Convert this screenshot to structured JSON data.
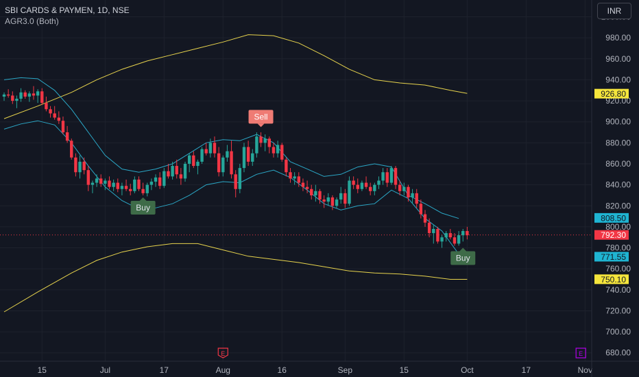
{
  "header": {
    "symbol_line": "SBI CARDS & PAYMEN, 1D, NSE",
    "indicator_line": "AGR3.0 (Both)"
  },
  "currency_button": "INR",
  "colors": {
    "background": "#131722",
    "up": "#26a69a",
    "down": "#f23645",
    "inner_band": "#2ba8c7",
    "outer_band": "#e8d44d",
    "buy_label": "#3e6b48",
    "sell_label": "#ef7b74",
    "earnings_red": "#f23645",
    "earnings_purple": "#b100e8"
  },
  "chart_data": {
    "type": "candlestick",
    "title": "SBI CARDS & PAYMEN, 1D, NSE",
    "ylim": [
      672,
      1016
    ],
    "y_ticks": [
      "1000.00",
      "980.00",
      "960.00",
      "940.00",
      "920.00",
      "900.00",
      "880.00",
      "860.00",
      "840.00",
      "820.00",
      "800.00",
      "780.00",
      "760.00",
      "740.00",
      "720.00",
      "700.00",
      "680.00"
    ],
    "x_ticks": [
      "15",
      "Jul",
      "17",
      "Aug",
      "16",
      "Sep",
      "15",
      "Oct",
      "17",
      "Nov"
    ],
    "grid": true,
    "price_labels": [
      {
        "value": 926.8,
        "text": "926.80",
        "series": "outer-upper"
      },
      {
        "value": 808.5,
        "text": "808.50",
        "series": "inner-upper"
      },
      {
        "value": 792.3,
        "text": "792.30",
        "series": "last-price"
      },
      {
        "value": 771.55,
        "text": "771.55",
        "series": "inner-lower"
      },
      {
        "value": 750.1,
        "text": "750.10",
        "series": "outer-lower"
      }
    ],
    "last_price": 792.3,
    "signals": [
      {
        "label": "Buy",
        "bar": 33,
        "value": 830
      },
      {
        "label": "Sell",
        "bar": 61,
        "value": 893
      },
      {
        "label": "Buy",
        "bar": 109,
        "value": 782
      }
    ],
    "earnings_markers": [
      {
        "label": "E",
        "bar": 52,
        "color": "red"
      },
      {
        "label": "E",
        "bar": 137,
        "color": "purple"
      }
    ],
    "candles": [
      [
        924,
        928,
        920,
        926
      ],
      [
        926,
        931,
        923,
        925
      ],
      [
        925,
        929,
        917,
        920
      ],
      [
        920,
        925,
        913,
        922
      ],
      [
        922,
        932,
        919,
        928
      ],
      [
        928,
        930,
        922,
        924
      ],
      [
        924,
        929,
        919,
        927
      ],
      [
        927,
        934,
        921,
        925
      ],
      [
        925,
        931,
        918,
        929
      ],
      [
        929,
        932,
        916,
        918
      ],
      [
        918,
        924,
        910,
        912
      ],
      [
        912,
        915,
        904,
        908
      ],
      [
        908,
        915,
        902,
        904
      ],
      [
        904,
        910,
        898,
        901
      ],
      [
        901,
        905,
        888,
        890
      ],
      [
        890,
        896,
        880,
        882
      ],
      [
        882,
        884,
        864,
        866
      ],
      [
        866,
        870,
        848,
        852
      ],
      [
        852,
        868,
        846,
        862
      ],
      [
        862,
        866,
        850,
        854
      ],
      [
        854,
        858,
        834,
        840
      ],
      [
        840,
        844,
        832,
        842
      ],
      [
        842,
        850,
        838,
        846
      ],
      [
        846,
        850,
        838,
        841
      ],
      [
        841,
        846,
        835,
        844
      ],
      [
        844,
        848,
        836,
        838
      ],
      [
        838,
        845,
        834,
        842
      ],
      [
        842,
        846,
        833,
        836
      ],
      [
        836,
        842,
        830,
        839
      ],
      [
        839,
        845,
        834,
        836
      ],
      [
        836,
        841,
        830,
        834
      ],
      [
        834,
        848,
        832,
        845
      ],
      [
        845,
        848,
        834,
        836
      ],
      [
        836,
        842,
        830,
        832
      ],
      [
        832,
        842,
        829,
        840
      ],
      [
        840,
        846,
        835,
        843
      ],
      [
        843,
        850,
        838,
        847
      ],
      [
        847,
        852,
        836,
        839
      ],
      [
        839,
        856,
        837,
        853
      ],
      [
        853,
        860,
        846,
        848
      ],
      [
        848,
        862,
        845,
        858
      ],
      [
        858,
        864,
        846,
        850
      ],
      [
        850,
        856,
        840,
        846
      ],
      [
        846,
        862,
        843,
        860
      ],
      [
        860,
        870,
        852,
        868
      ],
      [
        868,
        872,
        856,
        858
      ],
      [
        858,
        864,
        850,
        862
      ],
      [
        862,
        876,
        860,
        874
      ],
      [
        874,
        880,
        868,
        870
      ],
      [
        870,
        884,
        866,
        880
      ],
      [
        880,
        886,
        866,
        870
      ],
      [
        870,
        876,
        848,
        852
      ],
      [
        852,
        868,
        848,
        866
      ],
      [
        866,
        878,
        862,
        872
      ],
      [
        872,
        882,
        846,
        850
      ],
      [
        850,
        854,
        828,
        836
      ],
      [
        836,
        860,
        832,
        856
      ],
      [
        856,
        880,
        852,
        876
      ],
      [
        876,
        882,
        858,
        862
      ],
      [
        862,
        874,
        858,
        870
      ],
      [
        870,
        890,
        866,
        886
      ],
      [
        886,
        890,
        876,
        880
      ],
      [
        880,
        888,
        872,
        884
      ],
      [
        884,
        886,
        870,
        876
      ],
      [
        876,
        880,
        866,
        870
      ],
      [
        870,
        882,
        866,
        878
      ],
      [
        878,
        880,
        862,
        864
      ],
      [
        864,
        866,
        848,
        852
      ],
      [
        852,
        856,
        842,
        846
      ],
      [
        846,
        852,
        840,
        848
      ],
      [
        848,
        852,
        838,
        842
      ],
      [
        842,
        846,
        834,
        838
      ],
      [
        838,
        844,
        832,
        836
      ],
      [
        836,
        840,
        826,
        830
      ],
      [
        830,
        840,
        824,
        834
      ],
      [
        834,
        836,
        822,
        826
      ],
      [
        826,
        830,
        818,
        824
      ],
      [
        824,
        832,
        820,
        828
      ],
      [
        828,
        830,
        816,
        820
      ],
      [
        820,
        828,
        818,
        826
      ],
      [
        826,
        838,
        822,
        832
      ],
      [
        832,
        836,
        818,
        822
      ],
      [
        822,
        848,
        820,
        844
      ],
      [
        844,
        848,
        836,
        840
      ],
      [
        840,
        846,
        832,
        836
      ],
      [
        836,
        844,
        834,
        842
      ],
      [
        842,
        848,
        836,
        838
      ],
      [
        838,
        842,
        830,
        834
      ],
      [
        834,
        842,
        830,
        840
      ],
      [
        840,
        848,
        836,
        844
      ],
      [
        844,
        856,
        840,
        852
      ],
      [
        852,
        856,
        838,
        842
      ],
      [
        842,
        858,
        840,
        856
      ],
      [
        856,
        858,
        836,
        840
      ],
      [
        840,
        844,
        830,
        834
      ],
      [
        834,
        842,
        830,
        838
      ],
      [
        838,
        840,
        824,
        828
      ],
      [
        828,
        836,
        822,
        832
      ],
      [
        832,
        836,
        818,
        822
      ],
      [
        822,
        826,
        808,
        812
      ],
      [
        812,
        816,
        800,
        804
      ],
      [
        804,
        808,
        790,
        794
      ],
      [
        794,
        802,
        784,
        798
      ],
      [
        798,
        800,
        784,
        786
      ],
      [
        786,
        792,
        780,
        790
      ],
      [
        790,
        796,
        786,
        794
      ],
      [
        794,
        798,
        788,
        790
      ],
      [
        790,
        794,
        782,
        784
      ],
      [
        784,
        796,
        782,
        792
      ],
      [
        792,
        798,
        786,
        796
      ],
      [
        796,
        800,
        788,
        792
      ]
    ],
    "series": [
      {
        "name": "outer-upper",
        "values": [
          [
            0,
            903
          ],
          [
            8,
            915
          ],
          [
            16,
            928
          ],
          [
            22,
            940
          ],
          [
            28,
            950
          ],
          [
            34,
            958
          ],
          [
            40,
            964
          ],
          [
            46,
            970
          ],
          [
            52,
            976
          ],
          [
            58,
            983
          ],
          [
            64,
            982
          ],
          [
            70,
            975
          ],
          [
            76,
            963
          ],
          [
            82,
            950
          ],
          [
            88,
            940
          ],
          [
            94,
            937
          ],
          [
            100,
            935
          ],
          [
            106,
            930
          ],
          [
            110,
            927
          ]
        ]
      },
      {
        "name": "inner-upper",
        "values": [
          [
            0,
            940
          ],
          [
            4,
            942
          ],
          [
            8,
            941
          ],
          [
            12,
            930
          ],
          [
            16,
            912
          ],
          [
            20,
            890
          ],
          [
            24,
            868
          ],
          [
            28,
            855
          ],
          [
            32,
            852
          ],
          [
            36,
            855
          ],
          [
            40,
            860
          ],
          [
            44,
            870
          ],
          [
            48,
            880
          ],
          [
            52,
            883
          ],
          [
            56,
            882
          ],
          [
            60,
            888
          ],
          [
            64,
            880
          ],
          [
            68,
            862
          ],
          [
            72,
            855
          ],
          [
            76,
            848
          ],
          [
            80,
            850
          ],
          [
            84,
            857
          ],
          [
            88,
            860
          ],
          [
            92,
            857
          ],
          [
            96,
            830
          ],
          [
            100,
            822
          ],
          [
            104,
            813
          ],
          [
            108,
            808
          ]
        ]
      },
      {
        "name": "inner-lower",
        "values": [
          [
            0,
            893
          ],
          [
            4,
            898
          ],
          [
            8,
            901
          ],
          [
            12,
            897
          ],
          [
            16,
            880
          ],
          [
            20,
            858
          ],
          [
            24,
            838
          ],
          [
            28,
            825
          ],
          [
            32,
            817
          ],
          [
            36,
            818
          ],
          [
            40,
            822
          ],
          [
            44,
            830
          ],
          [
            48,
            840
          ],
          [
            52,
            843
          ],
          [
            56,
            842
          ],
          [
            60,
            850
          ],
          [
            64,
            854
          ],
          [
            68,
            847
          ],
          [
            72,
            835
          ],
          [
            76,
            822
          ],
          [
            80,
            816
          ],
          [
            84,
            820
          ],
          [
            88,
            822
          ],
          [
            92,
            835
          ],
          [
            96,
            827
          ],
          [
            100,
            808
          ],
          [
            104,
            796
          ],
          [
            108,
            774
          ],
          [
            110,
            772
          ]
        ]
      },
      {
        "name": "outer-lower",
        "values": [
          [
            0,
            719
          ],
          [
            8,
            738
          ],
          [
            16,
            756
          ],
          [
            22,
            768
          ],
          [
            28,
            776
          ],
          [
            34,
            781
          ],
          [
            40,
            784
          ],
          [
            46,
            784
          ],
          [
            52,
            778
          ],
          [
            58,
            772
          ],
          [
            64,
            769
          ],
          [
            70,
            766
          ],
          [
            76,
            762
          ],
          [
            82,
            758
          ],
          [
            88,
            756
          ],
          [
            94,
            755
          ],
          [
            100,
            753
          ],
          [
            106,
            750
          ],
          [
            110,
            750
          ]
        ]
      }
    ]
  }
}
